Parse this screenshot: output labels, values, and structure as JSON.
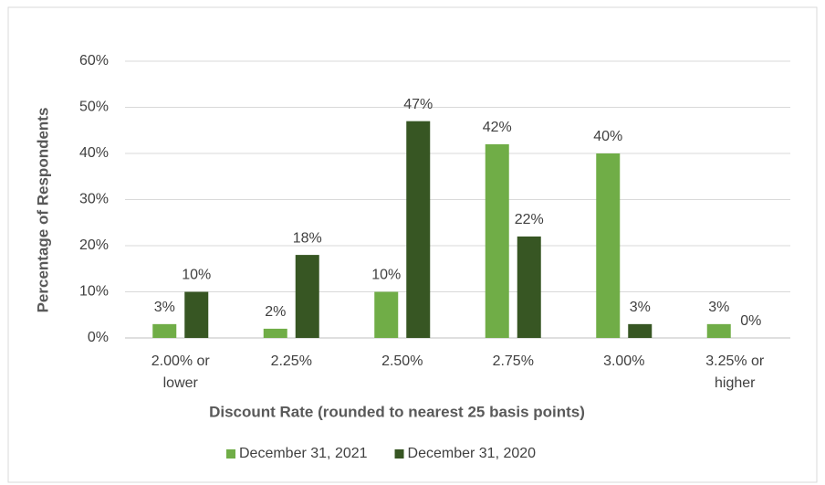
{
  "chart_data": {
    "type": "bar",
    "x_label": "Discount Rate (rounded to nearest 25 basis points)",
    "y_label": "Percentage of Respondents",
    "categories": [
      "2.00% or lower",
      "2.25%",
      "2.50%",
      "2.75%",
      "3.00%",
      "3.25% or higher"
    ],
    "series": [
      {
        "name": "December 31, 2021",
        "color": "#70ad47",
        "values": [
          3,
          2,
          10,
          42,
          40,
          3
        ],
        "value_labels": [
          "3%",
          "2%",
          "10%",
          "42%",
          "40%",
          "3%"
        ]
      },
      {
        "name": "December 31, 2020",
        "color": "#375623",
        "values": [
          10,
          18,
          47,
          22,
          3,
          0
        ],
        "value_labels": [
          "10%",
          "18%",
          "47%",
          "22%",
          "3%",
          "0%"
        ]
      }
    ],
    "ylim": [
      0,
      60
    ],
    "yticks": [
      {
        "value": 0,
        "label": "0%"
      },
      {
        "value": 10,
        "label": "10%"
      },
      {
        "value": 20,
        "label": "20%"
      },
      {
        "value": 30,
        "label": "30%"
      },
      {
        "value": 40,
        "label": "40%"
      },
      {
        "value": 50,
        "label": "50%"
      },
      {
        "value": 60,
        "label": "60%"
      }
    ],
    "grid": true,
    "legend": "bottom"
  }
}
